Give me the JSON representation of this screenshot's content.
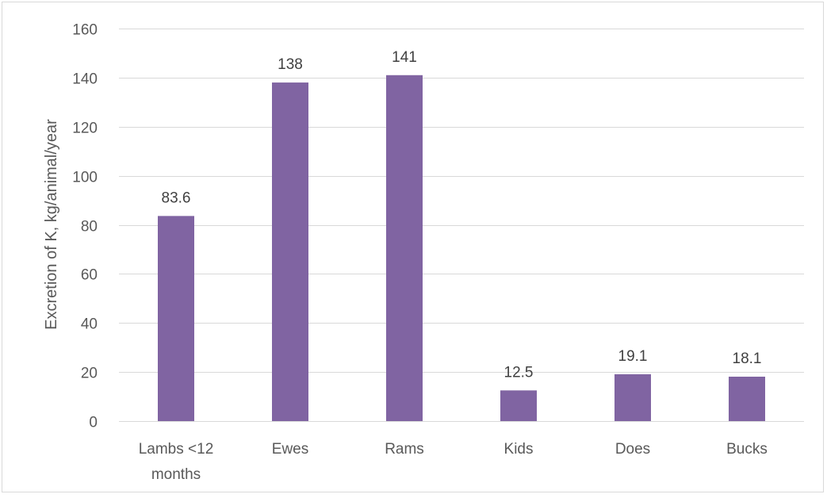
{
  "chart_data": {
    "type": "bar",
    "categories": [
      "Lambs <12 months",
      "Ewes",
      "Rams",
      "Kids",
      "Does",
      "Bucks"
    ],
    "category_lines": [
      [
        "Lambs <12",
        "months"
      ],
      [
        "Ewes"
      ],
      [
        "Rams"
      ],
      [
        "Kids"
      ],
      [
        "Does"
      ],
      [
        "Bucks"
      ]
    ],
    "values": [
      83.6,
      138,
      141,
      12.5,
      19.1,
      18.1
    ],
    "data_labels": [
      "83.6",
      "138",
      "141",
      "12.5",
      "19.1",
      "18.1"
    ],
    "title": "",
    "xlabel": "",
    "ylabel": "Excretion of K, kg/animal/year",
    "ylim": [
      0,
      160
    ],
    "yticks": [
      0,
      20,
      40,
      60,
      80,
      100,
      120,
      140,
      160
    ],
    "grid": true,
    "bar_color": "#8064a2",
    "legend": "none"
  }
}
